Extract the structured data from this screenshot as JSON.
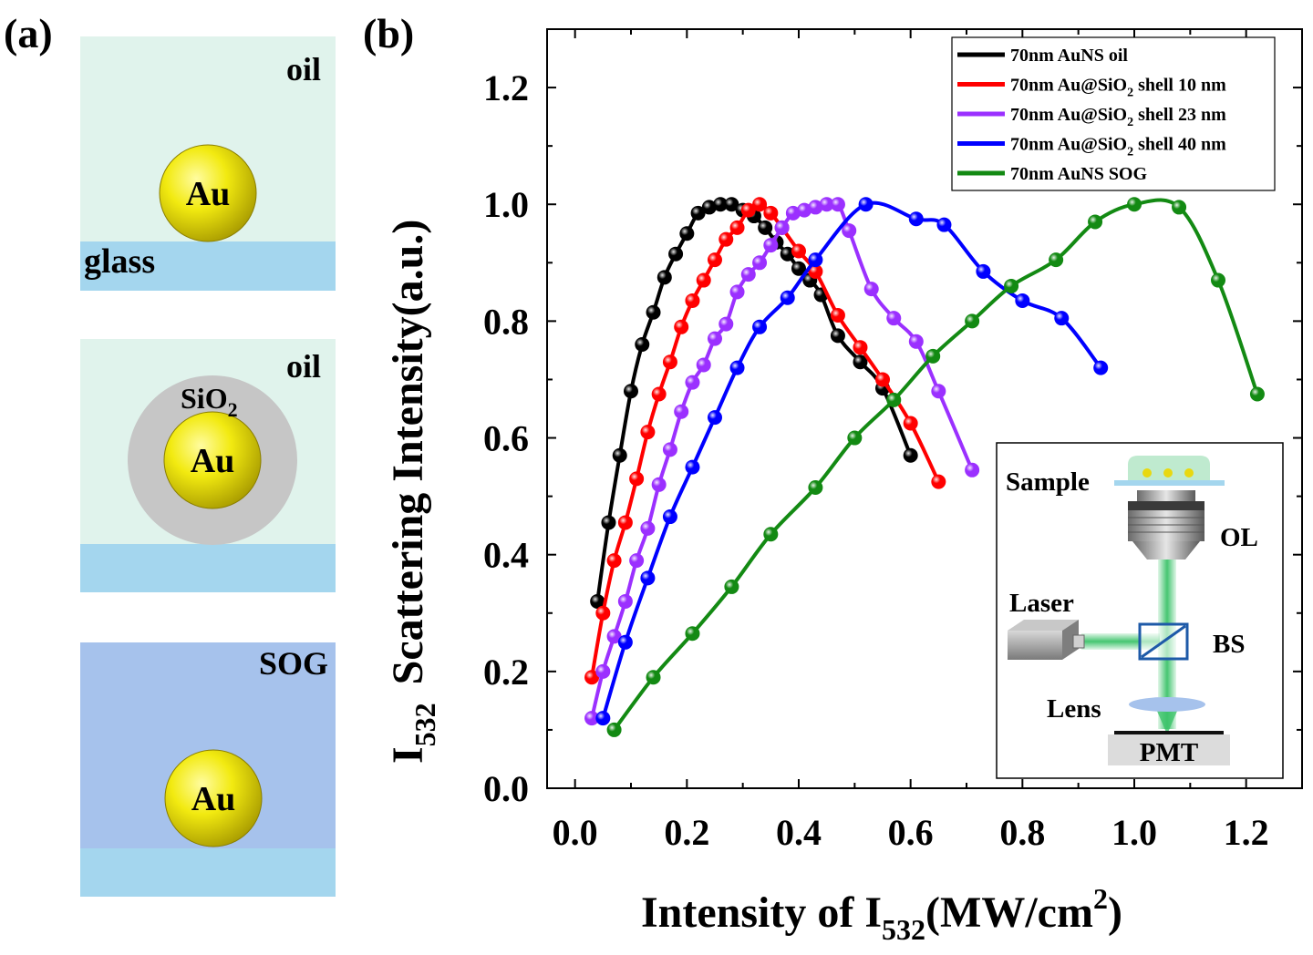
{
  "panel_a": {
    "label": "(a)",
    "top": {
      "medium": "oil",
      "substrate": "glass",
      "particle": "Au"
    },
    "middle": {
      "medium": "oil",
      "shell": "SiO",
      "shell_sub": "2",
      "particle": "Au"
    },
    "bottom": {
      "medium": "SOG",
      "particle": "Au"
    },
    "colors": {
      "oil": "#e0f3ec",
      "glass": "#a4d6ee",
      "sog": "#a6c2ec",
      "shell": "#c6c6c6",
      "gold": "#e8e01a"
    }
  },
  "panel_b": {
    "label": "(b)"
  },
  "chart_data": {
    "type": "line",
    "xlabel": "Intensity of I",
    "xlabel_sub": "532",
    "xlabel_unit": "(MW/cm",
    "xlabel_sup": "2",
    "xlabel_end": ")",
    "ylabel": "Scattering Intensity(a.u.)",
    "ylabel_prefix": "I",
    "ylabel_sub": "532",
    "xlim": [
      -0.05,
      1.3
    ],
    "ylim": [
      0,
      1.3
    ],
    "xticks": [
      "0.0",
      "0.2",
      "0.4",
      "0.6",
      "0.8",
      "1.0",
      "1.2"
    ],
    "yticks": [
      "0.0",
      "0.2",
      "0.4",
      "0.6",
      "0.8",
      "1.0",
      "1.2"
    ],
    "legend_position": "top-right",
    "series": [
      {
        "name": "70nm AuNS oil",
        "color": "#000000",
        "x": [
          0.04,
          0.06,
          0.08,
          0.1,
          0.12,
          0.14,
          0.16,
          0.18,
          0.2,
          0.22,
          0.24,
          0.26,
          0.28,
          0.3,
          0.32,
          0.34,
          0.36,
          0.38,
          0.4,
          0.42,
          0.44,
          0.47,
          0.51,
          0.55,
          0.6
        ],
        "y": [
          0.32,
          0.455,
          0.57,
          0.68,
          0.76,
          0.815,
          0.875,
          0.915,
          0.95,
          0.985,
          0.995,
          1.0,
          1.0,
          0.99,
          0.98,
          0.96,
          0.935,
          0.915,
          0.89,
          0.87,
          0.845,
          0.775,
          0.73,
          0.685,
          0.57
        ]
      },
      {
        "name": "70nm Au@SiO",
        "name_sub": "2",
        "name_tail": " shell 10 nm",
        "color": "#ff0000",
        "x": [
          0.03,
          0.05,
          0.07,
          0.09,
          0.11,
          0.13,
          0.15,
          0.17,
          0.19,
          0.21,
          0.23,
          0.25,
          0.27,
          0.29,
          0.31,
          0.33,
          0.35,
          0.37,
          0.4,
          0.43,
          0.47,
          0.51,
          0.55,
          0.6,
          0.65
        ],
        "y": [
          0.19,
          0.3,
          0.39,
          0.455,
          0.53,
          0.61,
          0.675,
          0.73,
          0.79,
          0.835,
          0.87,
          0.905,
          0.94,
          0.96,
          0.99,
          1.0,
          0.985,
          0.96,
          0.92,
          0.885,
          0.81,
          0.755,
          0.7,
          0.625,
          0.525
        ]
      },
      {
        "name": "70nm Au@SiO",
        "name_sub": "2",
        "name_tail": " shell 23 nm",
        "color": "#9b30ff",
        "x": [
          0.03,
          0.05,
          0.07,
          0.09,
          0.11,
          0.13,
          0.15,
          0.17,
          0.19,
          0.21,
          0.23,
          0.25,
          0.27,
          0.29,
          0.31,
          0.33,
          0.35,
          0.37,
          0.39,
          0.41,
          0.43,
          0.45,
          0.47,
          0.49,
          0.53,
          0.57,
          0.61,
          0.65,
          0.71
        ],
        "y": [
          0.12,
          0.2,
          0.26,
          0.32,
          0.39,
          0.445,
          0.52,
          0.58,
          0.645,
          0.695,
          0.725,
          0.77,
          0.795,
          0.85,
          0.88,
          0.9,
          0.93,
          0.96,
          0.985,
          0.99,
          0.995,
          1.0,
          1.0,
          0.955,
          0.855,
          0.805,
          0.765,
          0.68,
          0.545
        ]
      },
      {
        "name": "70nm Au@SiO",
        "name_sub": "2",
        "name_tail": " shell 40 nm",
        "color": "#0000ff",
        "x": [
          0.05,
          0.09,
          0.13,
          0.17,
          0.21,
          0.25,
          0.29,
          0.33,
          0.38,
          0.43,
          0.52,
          0.61,
          0.66,
          0.73,
          0.8,
          0.87,
          0.94
        ],
        "y": [
          0.12,
          0.25,
          0.36,
          0.465,
          0.55,
          0.635,
          0.72,
          0.79,
          0.84,
          0.905,
          1.0,
          0.975,
          0.965,
          0.885,
          0.835,
          0.805,
          0.72
        ]
      },
      {
        "name": "70nm AuNS SOG",
        "color": "#138a13",
        "x": [
          0.07,
          0.14,
          0.21,
          0.28,
          0.35,
          0.43,
          0.5,
          0.57,
          0.64,
          0.71,
          0.78,
          0.86,
          0.93,
          1.0,
          1.08,
          1.15,
          1.22
        ],
        "y": [
          0.1,
          0.19,
          0.265,
          0.345,
          0.435,
          0.515,
          0.6,
          0.665,
          0.74,
          0.8,
          0.86,
          0.905,
          0.97,
          1.0,
          0.995,
          0.87,
          0.675
        ]
      }
    ]
  },
  "inset": {
    "labels": {
      "sample": "Sample",
      "ol": "OL",
      "laser": "Laser",
      "bs": "BS",
      "lens": "Lens",
      "pmt": "PMT"
    },
    "beam_color": "#3cc36a"
  }
}
